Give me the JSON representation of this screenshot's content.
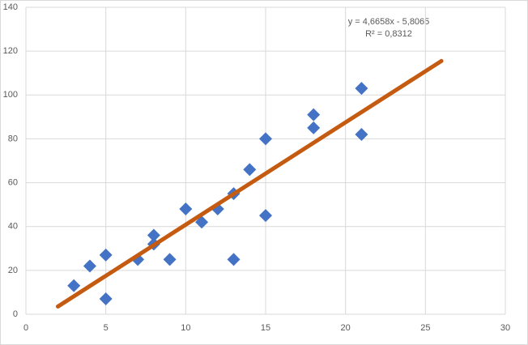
{
  "chart_data": {
    "type": "scatter",
    "x": [
      3,
      4,
      5,
      5,
      7,
      8,
      8,
      9,
      10,
      11,
      12,
      13,
      13,
      14,
      15,
      15,
      18,
      18,
      21,
      21
    ],
    "y": [
      13,
      22,
      27,
      7,
      25,
      36,
      32,
      25,
      48,
      42,
      48,
      55,
      25,
      66,
      80,
      45,
      91,
      85,
      103,
      82
    ],
    "color": "#4472c4",
    "xlim": [
      0,
      30
    ],
    "xticks": [
      0,
      5,
      10,
      15,
      20,
      25,
      30
    ],
    "ylim": [
      0,
      140
    ],
    "yticks": [
      0,
      20,
      40,
      60,
      80,
      100,
      120,
      140
    ],
    "grid": true,
    "trendline": {
      "equation": "y = 4,6658x - 5,8065",
      "r_squared": "R² = 0,8312",
      "slope": 4.6658,
      "intercept": -5.8065,
      "x": [
        2,
        26
      ],
      "color": "#c55a11"
    }
  }
}
